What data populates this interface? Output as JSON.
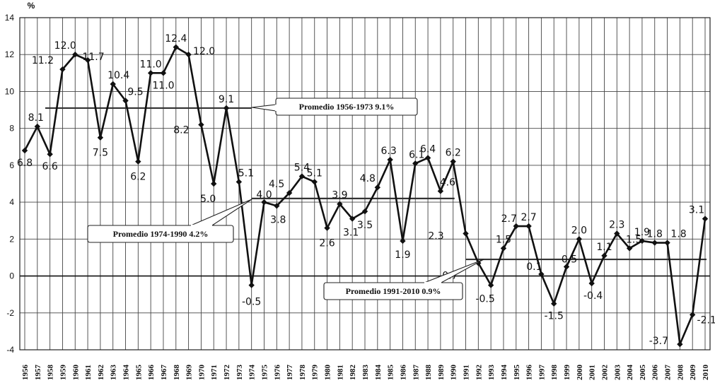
{
  "chart_data": {
    "type": "line",
    "ylabel": "%",
    "ylim": [
      -4,
      14
    ],
    "yticks": [
      14,
      12,
      10,
      8,
      6,
      4,
      2,
      0,
      -2,
      -4
    ],
    "grid": true,
    "categories": [
      "1956",
      "1957",
      "1958",
      "1959",
      "1960",
      "1961",
      "1962",
      "1963",
      "1964",
      "1965",
      "1966",
      "1967",
      "1968",
      "1969",
      "1970",
      "1971",
      "1972",
      "1973",
      "1974",
      "1975",
      "1976",
      "1977",
      "1978",
      "1979",
      "1980",
      "1981",
      "1982",
      "1983",
      "1984",
      "1985",
      "1986",
      "1987",
      "1988",
      "1989",
      "1990",
      "1991",
      "1992",
      "1993",
      "1994",
      "1995",
      "1996",
      "1997",
      "1998",
      "1999",
      "2000",
      "2001",
      "2002",
      "2003",
      "2004",
      "2005",
      "2006",
      "2007",
      "2008",
      "2009",
      "2010"
    ],
    "values": [
      6.8,
      8.1,
      6.6,
      11.2,
      12.0,
      11.7,
      7.5,
      10.4,
      9.5,
      6.2,
      11.0,
      11.0,
      12.4,
      12.0,
      8.2,
      5.0,
      9.1,
      5.1,
      -0.5,
      4.0,
      3.8,
      4.5,
      5.4,
      5.1,
      2.6,
      3.9,
      3.1,
      3.5,
      4.8,
      6.3,
      1.9,
      6.1,
      6.4,
      4.6,
      6.2,
      2.3,
      0.7,
      -0.5,
      1.5,
      2.7,
      2.7,
      0.1,
      -1.5,
      0.5,
      2.0,
      -0.4,
      1.1,
      2.3,
      1.5,
      1.9,
      1.8,
      1.8,
      -3.7,
      -2.1,
      3.1
    ],
    "data_labels": [
      "6.8",
      "8.1",
      "6.6",
      "11.2",
      "12.0",
      "11.7",
      "7.5",
      "10.4",
      "9.5",
      "6.2",
      "11.0",
      "11.0",
      "12.4",
      "12.0",
      "8.2",
      "5.0",
      "9.1",
      "5.1",
      "-0.5",
      "4.0",
      "3.8",
      "4.5",
      "5.4",
      "5.1",
      "2.6",
      "3.9",
      "3.1",
      "3.5",
      "4.8",
      "6.3",
      "1.9",
      "6.1",
      "6.4",
      "4.6",
      "6.2",
      "2.3",
      "0.7",
      "-0.5",
      "1.5",
      "2.7",
      "2.7",
      "0.1",
      "-1.5",
      "0.5",
      "2.0",
      "-0.4",
      "1.1",
      "2.3",
      "1.5",
      "1.9",
      "1.8",
      "1.8",
      "-3.7",
      "-2.1",
      "3.1"
    ],
    "averages": [
      {
        "label": "Promedio 1956-1973   9.1%",
        "value": 9.1,
        "from": "1956",
        "to": "1973"
      },
      {
        "label": "Promedio 1974-1990   4.2%",
        "value": 4.2,
        "from": "1974",
        "to": "1990"
      },
      {
        "label": "Promedio 1991-2010   0.9%",
        "value": 0.9,
        "from": "1991",
        "to": "2010"
      }
    ],
    "colors": {
      "line": "#111111",
      "grid": "#444444",
      "background": "#ffffff"
    }
  }
}
